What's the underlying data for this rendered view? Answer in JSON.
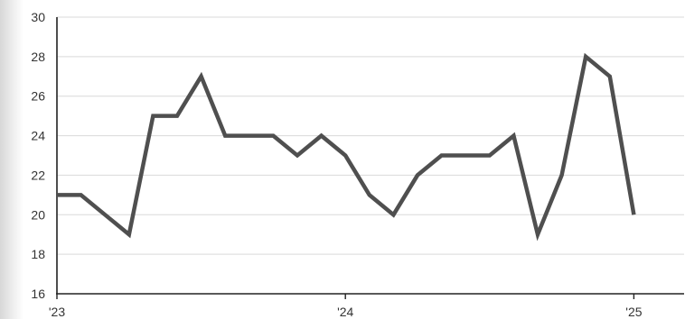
{
  "chart_data": {
    "type": "line",
    "title": "",
    "xlabel": "",
    "ylabel": "",
    "ylim": [
      16,
      30
    ],
    "yticks": [
      16,
      18,
      20,
      22,
      24,
      26,
      28,
      30
    ],
    "grid": "horizontal",
    "xticks": [
      {
        "label": "'23",
        "index": 0
      },
      {
        "label": "'24",
        "index": 12
      },
      {
        "label": "'25",
        "index": 24
      }
    ],
    "series": [
      {
        "color": "#4f4f4f",
        "values": [
          21,
          21,
          20,
          19,
          25,
          25,
          27,
          24,
          24,
          24,
          23,
          24,
          23,
          21,
          20,
          22,
          23,
          23,
          23,
          24,
          19,
          22,
          28,
          27,
          20
        ]
      }
    ]
  }
}
